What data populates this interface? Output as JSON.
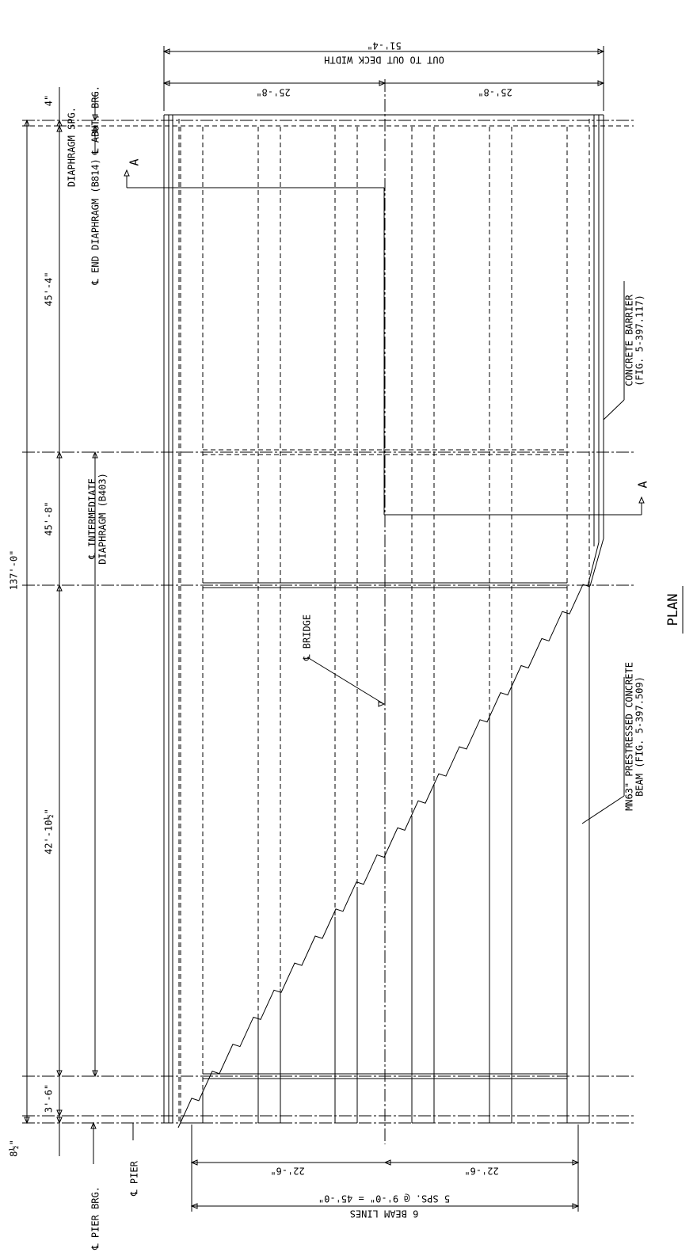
{
  "labels": {
    "diaphragm_spg": "DIAPHRAGM SPG.",
    "abut_brg": "℄ ABUT. BRG.",
    "end_diaphragm": "℄ END DIAPHRAGM (B814)",
    "intermediate": [
      "℄ INTERMEDIATE",
      "DIAPHRAGM (B403)"
    ],
    "bridge": "℄ BRIDGE",
    "pier_brg": "℄ PIER BRG.",
    "pier": "℄ PIER",
    "barrier": [
      "CONCRETE BARRIER",
      "(FIG. 5-397.117)"
    ],
    "beam": [
      "MN63\" PRESTRESSED CONCRETE",
      "BEAM (FIG. 5-397.509)"
    ],
    "section_a": [
      "A",
      "A"
    ],
    "view_title": "PLAN"
  },
  "dimensions": {
    "spacing": [
      "4\"",
      "45'-4\"",
      "45'-8\"",
      "42'-10½\"",
      "3'-6\"",
      "8½\""
    ],
    "overall_length": "137'-0\"",
    "deck_width": "51'-4\"",
    "deck_width_label": "OUT TO OUT DECK WIDTH",
    "half_width": [
      "25'-8\"",
      "25'-8\""
    ],
    "beam_half": [
      "22'-6\"",
      "22'-6\""
    ],
    "beam_spacing": "5 SPS. @ 9'-0\" = 45'-0\"",
    "beam_lines": "6 BEAM LINES"
  }
}
